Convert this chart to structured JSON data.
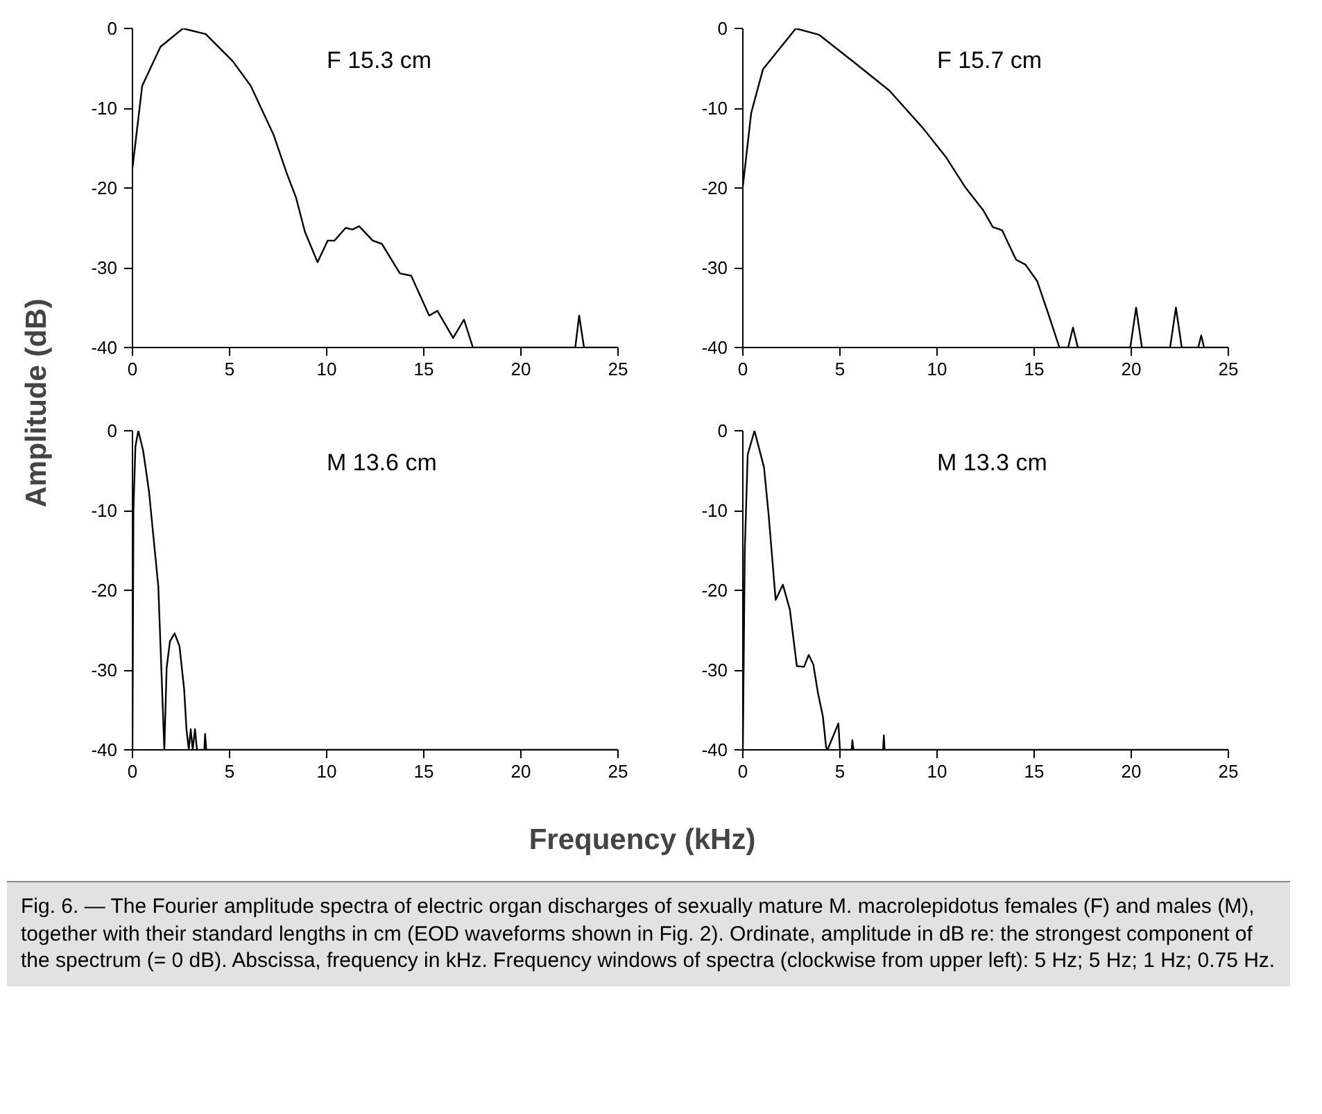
{
  "chart_data": [
    {
      "type": "line",
      "title": "F 15.3 cm",
      "ylabel": "Amplitude (dB)",
      "xlim": [
        0,
        25
      ],
      "ylim": [
        -40,
        0
      ],
      "xticks": [
        0,
        5,
        10,
        15,
        20,
        25
      ],
      "yticks": [
        0,
        -10,
        -20,
        -30,
        -40
      ],
      "marker": "none",
      "line_style": "solid",
      "series": [
        {
          "color": "#000000",
          "x": [
            0,
            0.5,
            1.44,
            2.6,
            3.77,
            5.16,
            6.09,
            7.26,
            7.95,
            8.42,
            8.88,
            9.53,
            10.05,
            10.4,
            10.98,
            11.33,
            11.67,
            12.37,
            12.84,
            13.77,
            14.35,
            15.28,
            15.7,
            16.51,
            17.07,
            17.53,
            22.8,
            23.0,
            23.25,
            25
          ],
          "values": [
            -17.5,
            -7.2,
            -2.3,
            0,
            -0.7,
            -4.1,
            -7.2,
            -13.3,
            -18.2,
            -21.2,
            -25.5,
            -29.3,
            -26.6,
            -26.6,
            -25,
            -25.2,
            -24.8,
            -26.6,
            -27,
            -30.7,
            -31,
            -36,
            -35.4,
            -38.8,
            -36.5,
            -40,
            -40,
            -36,
            -40,
            -40
          ]
        }
      ]
    },
    {
      "type": "line",
      "title": "F 15.7 cm",
      "xlim": [
        0,
        25
      ],
      "ylim": [
        -40,
        0
      ],
      "xticks": [
        0,
        5,
        10,
        15,
        20,
        25
      ],
      "yticks": [
        0,
        -10,
        -20,
        -30,
        -40
      ],
      "marker": "none",
      "line_style": "solid",
      "series": [
        {
          "color": "#000000",
          "x": [
            0,
            0.43,
            1.04,
            2.73,
            3.93,
            5.86,
            7.55,
            9.24,
            10.45,
            11.42,
            12.38,
            12.87,
            13.35,
            14.07,
            14.55,
            15.16,
            15.76,
            16.3,
            16.75,
            17.0,
            17.25,
            19.95,
            20.25,
            20.55,
            22.0,
            22.3,
            22.6,
            23.45,
            23.6,
            23.75,
            25
          ],
          "values": [
            -19.8,
            -10.6,
            -5.1,
            0,
            -0.8,
            -4.5,
            -7.8,
            -12.4,
            -16.1,
            -19.8,
            -22.8,
            -24.9,
            -25.3,
            -29,
            -29.6,
            -31.7,
            -36,
            -40,
            -40,
            -37.5,
            -40,
            -40,
            -35,
            -40,
            -40,
            -35,
            -40,
            -40,
            -38.5,
            -40,
            -40
          ]
        }
      ]
    },
    {
      "type": "line",
      "title": "M 13.6 cm",
      "xlabel": "Frequency (kHz)",
      "xlim": [
        0,
        25
      ],
      "ylim": [
        -40,
        0
      ],
      "xticks": [
        0,
        5,
        10,
        15,
        20,
        25
      ],
      "yticks": [
        0,
        -10,
        -20,
        -30,
        -40
      ],
      "marker": "none",
      "line_style": "solid",
      "series": [
        {
          "color": "#000000",
          "x": [
            0,
            0.05,
            0.15,
            0.3,
            0.55,
            0.85,
            1.33,
            1.64,
            1.76,
            1.93,
            2.17,
            2.42,
            2.66,
            2.78,
            2.9,
            3.0,
            3.1,
            3.22,
            3.32,
            3.7,
            3.74,
            3.8,
            25
          ],
          "values": [
            -40,
            -10,
            -2,
            0,
            -2.5,
            -7.6,
            -19.5,
            -40,
            -29.7,
            -26.4,
            -25.4,
            -27,
            -32.4,
            -37.4,
            -40,
            -37.4,
            -40,
            -37.4,
            -40,
            -40,
            -38,
            -40,
            -40
          ]
        }
      ]
    },
    {
      "type": "line",
      "title": "M 13.3 cm",
      "xlim": [
        0,
        25
      ],
      "ylim": [
        -40,
        0
      ],
      "xticks": [
        0,
        5,
        10,
        15,
        20,
        25
      ],
      "yticks": [
        0,
        -10,
        -20,
        -30,
        -40
      ],
      "marker": "none",
      "line_style": "solid",
      "annotations": [
        "Fig. 6. — The Fourier amplitude spectra of electric organ discharges of sexually mature M. macrolepidotus females (F) and males (M), together with their standard lengths in cm (EOD waveforms shown in Fig. 2). Ordinate, amplitude in dB re: the strongest component of the spectrum (= 0 dB). Abscissa, frequency in kHz. Frequency windows of spectra (clockwise from upper left): 5 Hz; 5 Hz; 1 Hz; 0.75 Hz."
      ],
      "series": [
        {
          "color": "#000000",
          "x": [
            0,
            0.1,
            0.25,
            0.6,
            1.09,
            1.33,
            1.69,
            2.06,
            2.42,
            2.78,
            3.15,
            3.39,
            3.63,
            3.87,
            4.12,
            4.29,
            4.36,
            4.92,
            5.0,
            5.6,
            5.64,
            5.7,
            7.22,
            7.26,
            7.3,
            25
          ],
          "values": [
            -40,
            -15,
            -3,
            0,
            -4.6,
            -10.6,
            -21.2,
            -19.3,
            -22.4,
            -29.5,
            -29.6,
            -28.1,
            -29.3,
            -32.9,
            -35.8,
            -39.7,
            -40,
            -36.7,
            -40,
            -40,
            -38.8,
            -40,
            -40,
            -38.2,
            -40,
            -40
          ]
        }
      ]
    }
  ]
}
